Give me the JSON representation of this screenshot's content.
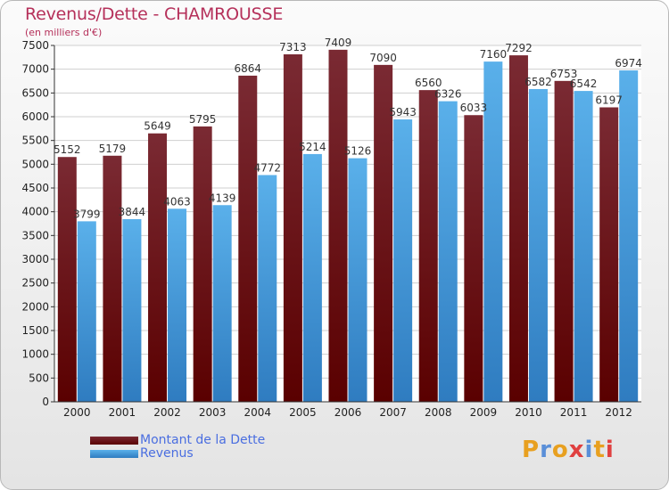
{
  "title": "Revenus/Dette - CHAMROUSSE",
  "subtitle": "(en milliers d'€)",
  "logo_text": "Proxiti",
  "colors": {
    "dette_top": "#7a2a33",
    "dette_bottom": "#5a0000",
    "revenus_top": "#5ab0ea",
    "revenus_bottom": "#2f7cc0",
    "title": "#b5305a",
    "legend_text": "#4a6ee0"
  },
  "chart_data": {
    "type": "bar",
    "categories": [
      "2000",
      "2001",
      "2002",
      "2003",
      "2004",
      "2005",
      "2006",
      "2007",
      "2008",
      "2009",
      "2010",
      "2011",
      "2012"
    ],
    "series": [
      {
        "name": "Montant de la Dette",
        "values": [
          5152,
          5179,
          5649,
          5795,
          6864,
          7313,
          7409,
          7090,
          6560,
          6033,
          7292,
          6753,
          6197
        ]
      },
      {
        "name": "Revenus",
        "values": [
          3799,
          3844,
          4063,
          4139,
          4772,
          5214,
          5126,
          5943,
          6326,
          7160,
          6582,
          6542,
          6974
        ]
      }
    ],
    "ylim": [
      0,
      7500
    ],
    "yticks": [
      0,
      500,
      1000,
      1500,
      2000,
      2500,
      3000,
      3500,
      4000,
      4500,
      5000,
      5500,
      6000,
      6500,
      7000,
      7500
    ],
    "grid": true,
    "legend_position": "bottom-left"
  }
}
